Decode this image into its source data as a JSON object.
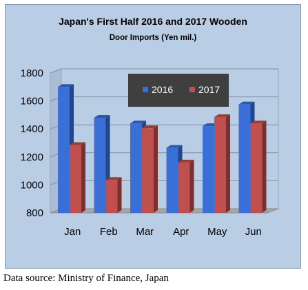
{
  "chart_data": {
    "type": "bar",
    "title": "Japan's First Half 2016 and 2017 Wooden",
    "subtitle": "Door Imports (Yen mil.)",
    "categories": [
      "Jan",
      "Feb",
      "Mar",
      "Apr",
      "May",
      "Jun"
    ],
    "series": [
      {
        "name": "2016",
        "values": [
          1700,
          1480,
          1440,
          1265,
          1420,
          1575
        ],
        "color": "#3a6fd8"
      },
      {
        "name": "2017",
        "values": [
          1285,
          1035,
          1405,
          1160,
          1485,
          1440
        ],
        "color": "#c0504d"
      }
    ],
    "ylim": [
      800,
      1800
    ],
    "yticks": [
      "800",
      "1000",
      "1200",
      "1400",
      "1600",
      "1800"
    ],
    "grid": true,
    "legend_position": "top-right",
    "style": "3d-clustered-bar"
  },
  "source": "Data source: Ministry of Finance, Japan"
}
